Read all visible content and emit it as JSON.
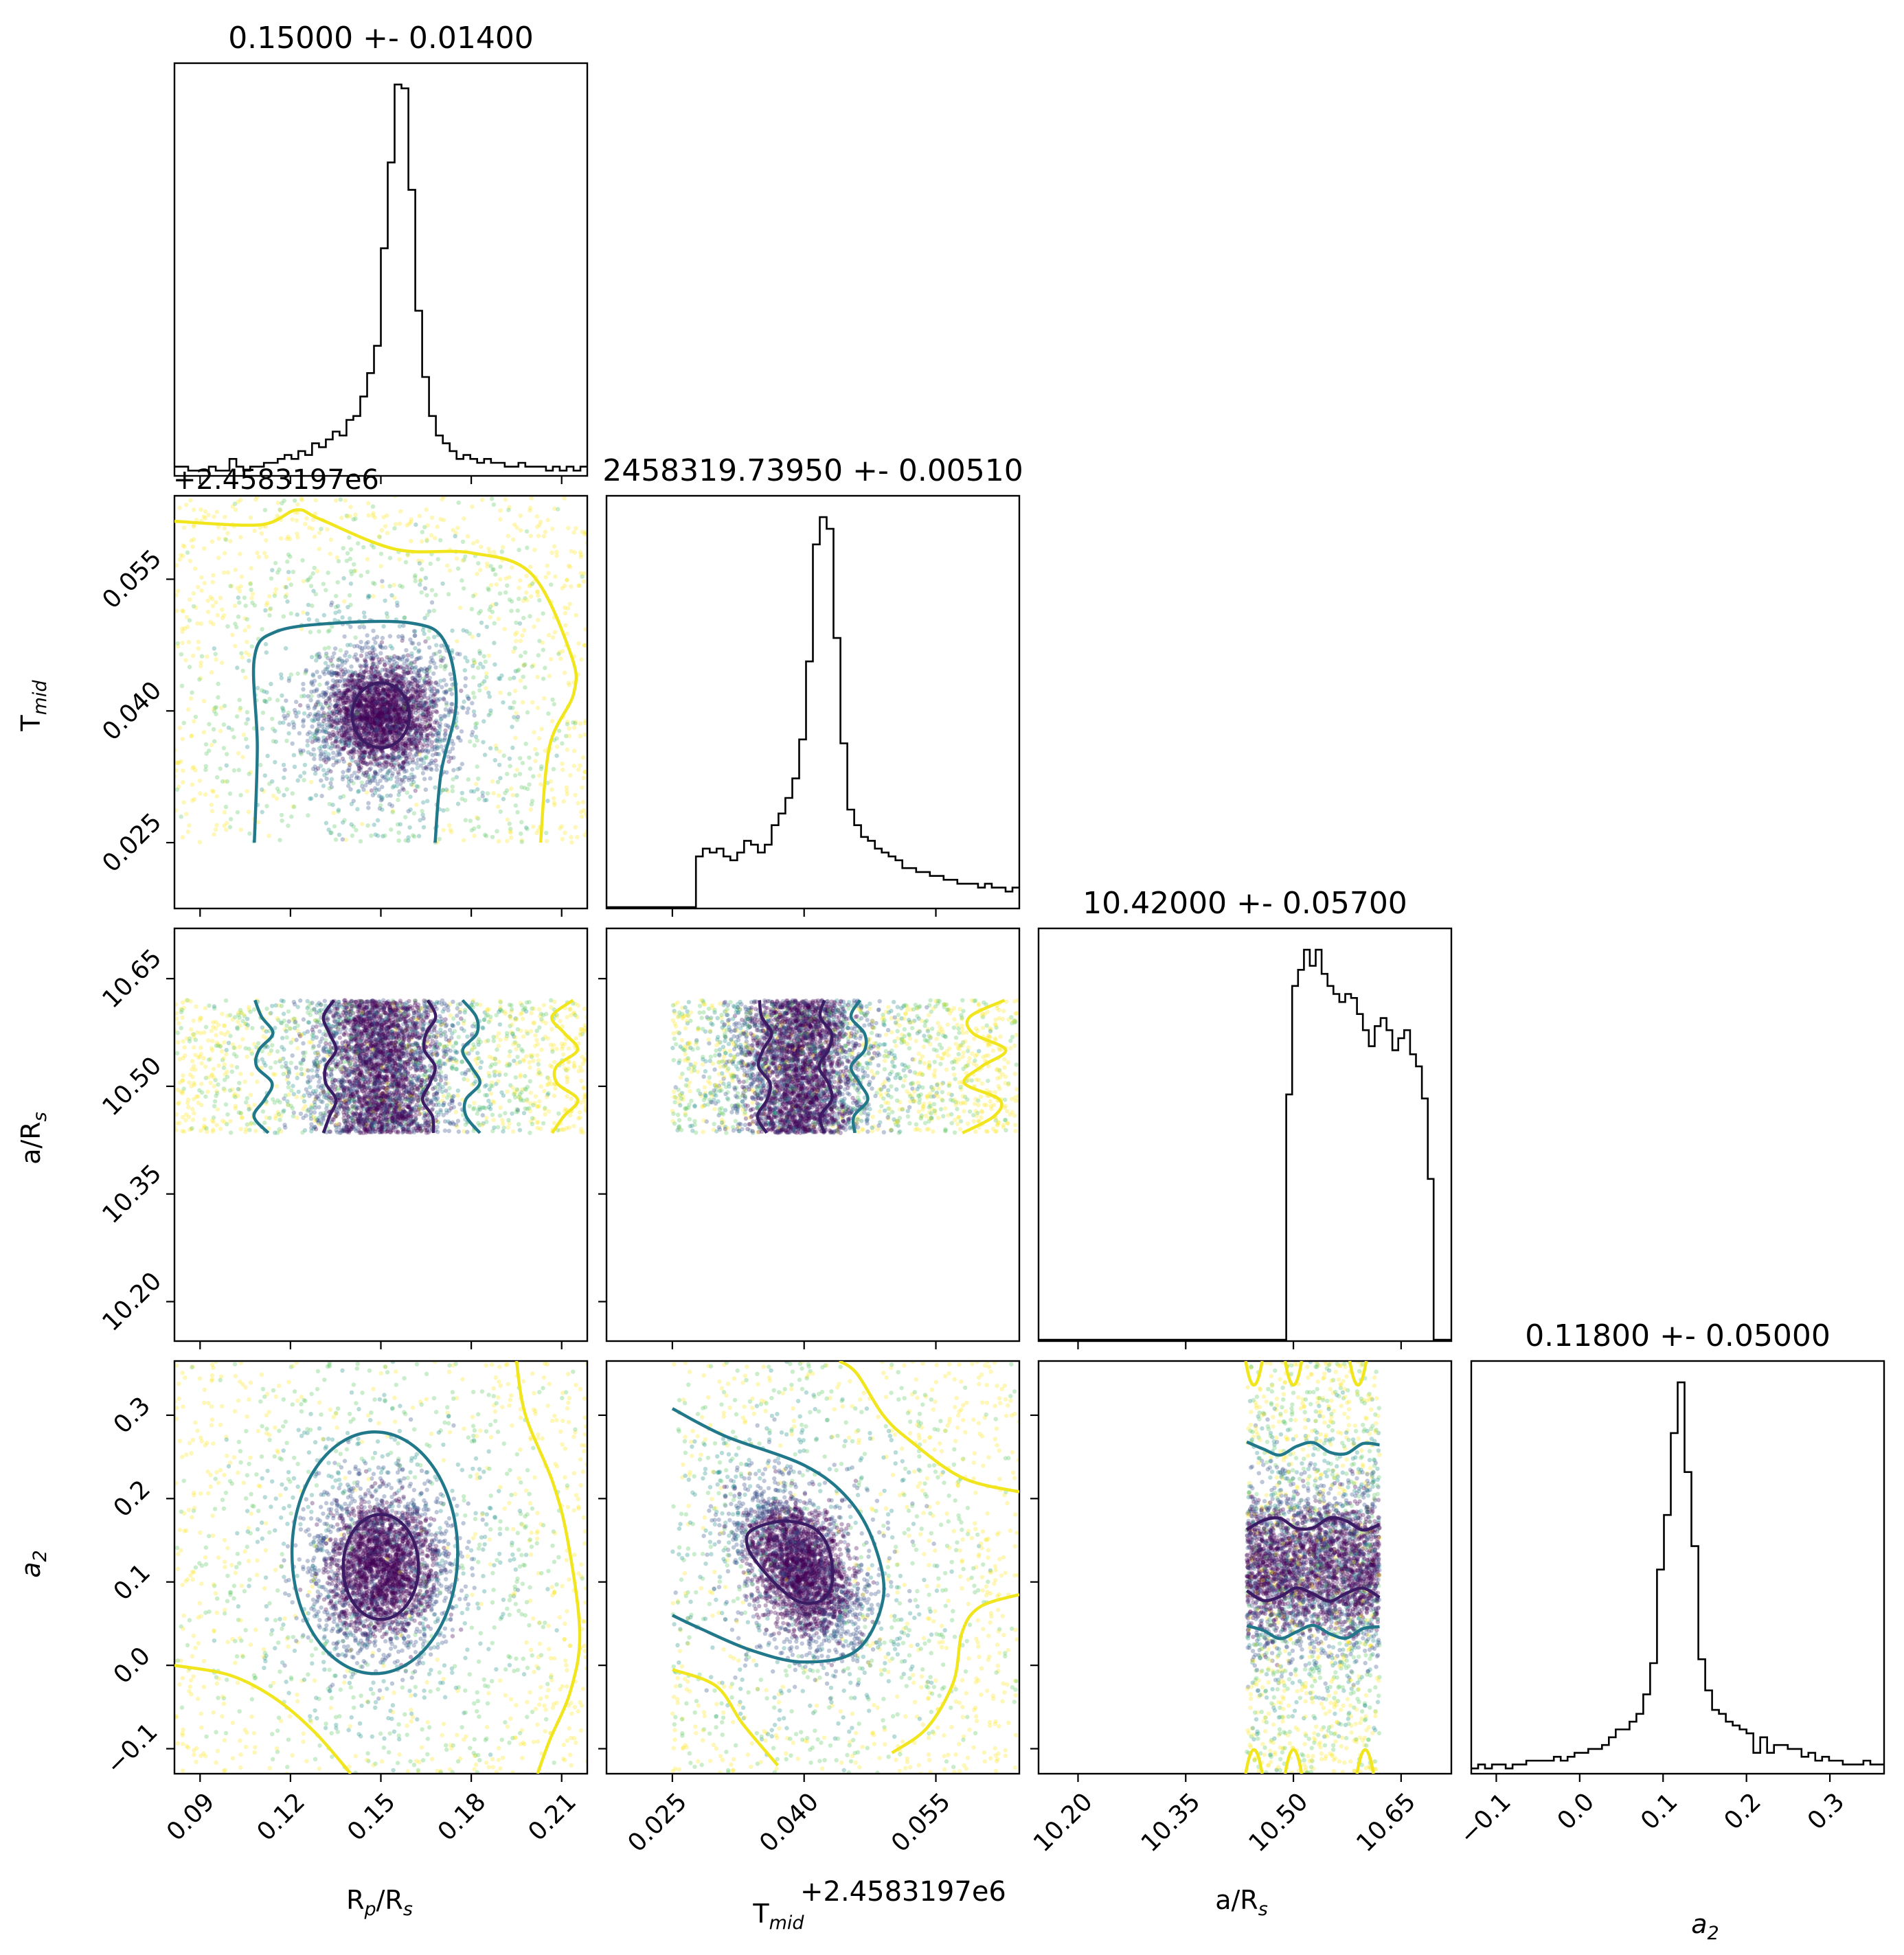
{
  "chart_data": {
    "type": "corner",
    "title": "",
    "parameters": [
      {
        "key": "rp",
        "label_main": "R",
        "label_sub": "p",
        "label_tail": "/R",
        "label_sub2": "s",
        "range": [
          0.0815,
          0.2185
        ],
        "ticks": [
          0.09,
          0.12,
          0.15,
          0.18,
          0.21
        ],
        "tick_labels": [
          "0.09",
          "0.12",
          "0.15",
          "0.18",
          "0.21"
        ],
        "offset_text": "",
        "median": 0.15,
        "title_text": "0.15000 +- 0.01400",
        "hist": [
          2,
          2,
          1,
          1,
          1,
          2,
          1,
          1,
          4,
          2,
          1,
          2,
          2,
          3,
          3,
          4,
          5,
          4,
          6,
          5,
          8,
          7,
          9,
          11,
          10,
          14,
          15,
          20,
          26,
          33,
          58,
          80,
          100,
          99,
          73,
          42,
          25,
          15,
          10,
          8,
          6,
          4,
          5,
          4,
          3,
          4,
          3,
          3,
          2,
          2,
          3,
          2,
          2,
          2,
          1,
          2,
          1,
          2,
          1,
          2
        ]
      },
      {
        "key": "tmid",
        "label_main": "T",
        "label_sub": "mid",
        "range": [
          0.0175,
          0.0645
        ],
        "ticks": [
          0.025,
          0.04,
          0.055
        ],
        "tick_labels": [
          "0.025",
          "0.040",
          "0.055"
        ],
        "offset_text": "+2.4583197e6",
        "median": 0.0395,
        "title_text": "2458319.73950 +- 0.00510",
        "hist": [
          0,
          0,
          0,
          0,
          0,
          0,
          0,
          0,
          0,
          0,
          0,
          0,
          0,
          13,
          15,
          14,
          15,
          13,
          12,
          14,
          17,
          16,
          14,
          16,
          21,
          24,
          28,
          33,
          43,
          63,
          93,
          100,
          97,
          69,
          42,
          25,
          21,
          18,
          17,
          15,
          14,
          13,
          12,
          10,
          10,
          9,
          9,
          8,
          8,
          7,
          7,
          6,
          6,
          6,
          5,
          6,
          5,
          5,
          4,
          5
        ]
      },
      {
        "key": "ars",
        "label_main": "a/R",
        "label_sub": "s",
        "range": [
          10.145,
          10.72
        ],
        "ticks": [
          10.2,
          10.35,
          10.5,
          10.65
        ],
        "tick_labels": [
          "10.20",
          "10.35",
          "10.50",
          "10.65"
        ],
        "offset_text": "",
        "median": 10.42,
        "title_text": "10.42000 +- 0.05700",
        "hist": [
          0,
          0,
          0,
          0,
          0,
          0,
          0,
          0,
          0,
          0,
          0,
          0,
          0,
          0,
          0,
          0,
          0,
          0,
          0,
          0,
          0,
          0,
          0,
          0,
          0,
          0,
          0,
          0,
          0,
          0,
          0,
          0,
          0,
          0,
          0,
          0,
          0,
          0,
          0,
          0,
          0,
          0,
          61,
          88,
          92,
          97,
          93,
          97,
          91,
          88,
          86,
          84,
          86,
          85,
          81,
          77,
          73,
          78,
          80,
          77,
          72,
          75,
          77,
          71,
          68,
          60,
          40,
          0,
          0,
          0
        ]
      },
      {
        "key": "a2",
        "label_main": "a",
        "label_sub": "2",
        "italic": true,
        "range": [
          -0.13,
          0.365
        ],
        "ticks": [
          -0.1,
          0.0,
          0.1,
          0.2,
          0.3
        ],
        "tick_labels": [
          "−0.1",
          "0.0",
          "0.1",
          "0.2",
          "0.3"
        ],
        "offset_text": "",
        "median": 0.118,
        "title_text": "0.11800 +- 0.05000",
        "hist": [
          1,
          2,
          1,
          2,
          2,
          1,
          2,
          2,
          3,
          3,
          3,
          3,
          4,
          3,
          4,
          5,
          5,
          6,
          6,
          7,
          9,
          11,
          11,
          13,
          15,
          20,
          28,
          52,
          66,
          87,
          100,
          77,
          58,
          29,
          21,
          16,
          15,
          13,
          12,
          11,
          10,
          5,
          9,
          5,
          7,
          7,
          6,
          6,
          4,
          5,
          3,
          4,
          3,
          3,
          2,
          2,
          2,
          3,
          2,
          2
        ]
      }
    ],
    "samples": {
      "n": 4200,
      "centers": [
        0.15,
        0.0395,
        10.53,
        0.118
      ],
      "sigmas": [
        0.0095,
        0.0032,
        0.0,
        0.038
      ],
      "tails": [
        [
          0.0815,
          0.2185
        ],
        [
          0.025,
          0.0645
        ],
        [
          10.435,
          10.62
        ],
        [
          -0.13,
          0.365
        ]
      ],
      "ars_window": [
        10.435,
        10.62
      ],
      "corr_tmid_a2": -0.5
    },
    "point_colors": [
      "#440154",
      "#3b528b",
      "#21918c",
      "#5ec962",
      "#fde725"
    ],
    "contour_colors": {
      "inner": "#3b1c64",
      "middle": "#21788a",
      "outer": "#f1e51d"
    },
    "contours": {
      "rp_tmid": {
        "inner_rx": 0.0095,
        "inner_ry": 0.0037,
        "middle": [
          [
            0.108,
            0.025
          ],
          [
            0.109,
            0.036
          ],
          [
            0.108,
            0.046
          ],
          [
            0.115,
            0.049
          ],
          [
            0.135,
            0.05
          ],
          [
            0.16,
            0.05
          ],
          [
            0.171,
            0.048
          ],
          [
            0.175,
            0.041
          ],
          [
            0.17,
            0.033
          ],
          [
            0.168,
            0.025
          ]
        ],
        "outer_top": [
          [
            0.0815,
            0.0616
          ],
          [
            0.11,
            0.0612
          ],
          [
            0.122,
            0.0629
          ],
          [
            0.13,
            0.0618
          ],
          [
            0.155,
            0.0584
          ],
          [
            0.18,
            0.058
          ],
          [
            0.2,
            0.0556
          ],
          [
            0.213,
            0.0465
          ],
          [
            0.214,
            0.042
          ],
          [
            0.206,
            0.036
          ],
          [
            0.203,
            0.025
          ]
        ]
      },
      "rp_ars": {
        "lines": [
          {
            "color": "middle",
            "x": 0.111,
            "amp": 0.0032
          },
          {
            "color": "inner",
            "x": 0.133,
            "amp": 0.0022
          },
          {
            "color": "inner",
            "x": 0.166,
            "amp": 0.0022
          },
          {
            "color": "middle",
            "x": 0.18,
            "amp": 0.003
          },
          {
            "color": "outer",
            "x": 0.211,
            "amp": 0.0045
          }
        ]
      },
      "tmid_ars": {
        "lines": [
          {
            "color": "inner",
            "x": 0.0355,
            "amp": 0.0008
          },
          {
            "color": "inner",
            "x": 0.0425,
            "amp": 0.0008
          },
          {
            "color": "middle",
            "x": 0.0463,
            "amp": 0.001
          },
          {
            "color": "outer",
            "x": 0.0605,
            "amp": 0.0025
          }
        ]
      },
      "rp_a2": {
        "inner_rx": 0.0125,
        "inner_ry": 0.063,
        "middle_rx": 0.0275,
        "middle_ry": 0.145,
        "outer_right": [
          [
            0.195,
            0.365
          ],
          [
            0.198,
            0.3
          ],
          [
            0.207,
            0.22
          ],
          [
            0.212,
            0.15
          ],
          [
            0.216,
            0.04
          ],
          [
            0.213,
            -0.03
          ],
          [
            0.206,
            -0.09
          ],
          [
            0.202,
            -0.13
          ]
        ],
        "outer_left": [
          [
            0.0815,
            0.0
          ],
          [
            0.1,
            -0.012
          ],
          [
            0.115,
            -0.04
          ],
          [
            0.128,
            -0.08
          ],
          [
            0.14,
            -0.13
          ]
        ]
      },
      "tmid_a2": {
        "inner": [
          [
            0.034,
            0.162
          ],
          [
            0.0375,
            0.173
          ],
          [
            0.041,
            0.165
          ],
          [
            0.0428,
            0.14
          ],
          [
            0.0432,
            0.1
          ],
          [
            0.042,
            0.078
          ],
          [
            0.0395,
            0.076
          ],
          [
            0.037,
            0.095
          ],
          [
            0.0345,
            0.125
          ],
          [
            0.0335,
            0.145
          ]
        ],
        "middle": [
          [
            0.025,
            0.308
          ],
          [
            0.031,
            0.275
          ],
          [
            0.04,
            0.24
          ],
          [
            0.045,
            0.2
          ],
          [
            0.048,
            0.145
          ],
          [
            0.049,
            0.08
          ],
          [
            0.046,
            0.018
          ],
          [
            0.04,
            0.004
          ],
          [
            0.034,
            0.018
          ],
          [
            0.028,
            0.045
          ],
          [
            0.025,
            0.06
          ]
        ],
        "outer_a": [
          [
            0.044,
            0.365
          ],
          [
            0.046,
            0.35
          ],
          [
            0.049,
            0.3
          ],
          [
            0.052,
            0.27
          ],
          [
            0.058,
            0.225
          ],
          [
            0.0645,
            0.208
          ]
        ],
        "outer_b": [
          [
            0.025,
            -0.005
          ],
          [
            0.03,
            -0.025
          ],
          [
            0.033,
            -0.07
          ],
          [
            0.037,
            -0.12
          ]
        ],
        "outer_c": [
          [
            0.0645,
            0.085
          ],
          [
            0.06,
            0.07
          ],
          [
            0.058,
            0.04
          ],
          [
            0.057,
            -0.02
          ],
          [
            0.054,
            -0.075
          ],
          [
            0.05,
            -0.105
          ]
        ]
      },
      "ars_a2": {
        "levels": [
          {
            "color": "middle",
            "y": 0.26,
            "amp": 0.008
          },
          {
            "color": "inner",
            "y": 0.17,
            "amp": 0.008
          },
          {
            "color": "inner",
            "y": 0.085,
            "amp": 0.008
          },
          {
            "color": "middle",
            "y": 0.04,
            "amp": 0.008
          }
        ],
        "yellow_top": [
          10.445,
          10.5,
          10.59
        ],
        "yellow_bottom": [
          10.445,
          10.5,
          10.6
        ]
      }
    }
  }
}
